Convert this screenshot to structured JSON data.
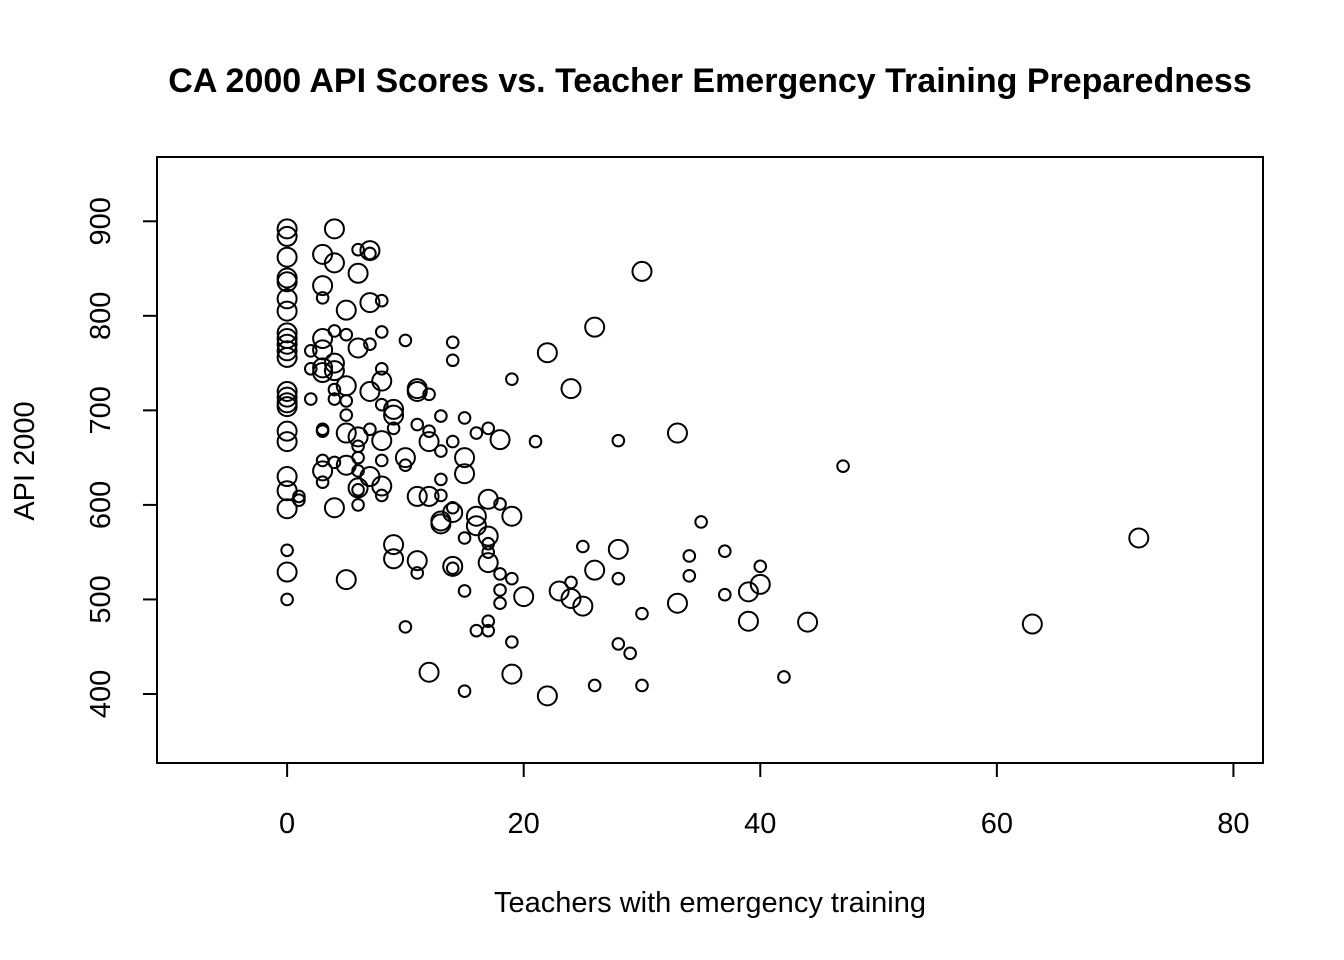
{
  "chart_data": {
    "type": "scatter",
    "title": "CA 2000 API Scores vs. Teacher Emergency Training Preparedness",
    "xlabel": "Teachers with emergency training",
    "ylabel": "API 2000",
    "xlim": [
      -11,
      82.5
    ],
    "ylim": [
      327,
      968
    ],
    "x_ticks": [
      0,
      20,
      40,
      60,
      80
    ],
    "y_ticks": [
      400,
      500,
      600,
      700,
      800,
      900
    ],
    "grid": false,
    "legend": "none",
    "marker": "open circle, size varies",
    "points": [
      {
        "x": 0,
        "y": 892,
        "s": 1.5
      },
      {
        "x": 0,
        "y": 884,
        "s": 1.5
      },
      {
        "x": 0,
        "y": 862,
        "s": 1.5
      },
      {
        "x": 0,
        "y": 840,
        "s": 1.5
      },
      {
        "x": 0,
        "y": 836,
        "s": 1.5
      },
      {
        "x": 0,
        "y": 818,
        "s": 1.5
      },
      {
        "x": 0,
        "y": 805,
        "s": 1.5
      },
      {
        "x": 0,
        "y": 782,
        "s": 1.5
      },
      {
        "x": 0,
        "y": 776,
        "s": 1.5
      },
      {
        "x": 0,
        "y": 770,
        "s": 1.5
      },
      {
        "x": 0,
        "y": 763,
        "s": 1.5
      },
      {
        "x": 0,
        "y": 756,
        "s": 1.5
      },
      {
        "x": 0,
        "y": 720,
        "s": 1.5
      },
      {
        "x": 0,
        "y": 714,
        "s": 1.5
      },
      {
        "x": 0,
        "y": 708,
        "s": 1.5
      },
      {
        "x": 0,
        "y": 704,
        "s": 1.5
      },
      {
        "x": 0,
        "y": 678,
        "s": 1.5
      },
      {
        "x": 0,
        "y": 667,
        "s": 1.5
      },
      {
        "x": 0,
        "y": 630,
        "s": 1.5
      },
      {
        "x": 0,
        "y": 615,
        "s": 1.5
      },
      {
        "x": 0,
        "y": 596,
        "s": 1.5
      },
      {
        "x": 0,
        "y": 552,
        "s": 1.0
      },
      {
        "x": 0,
        "y": 529,
        "s": 1.5
      },
      {
        "x": 0,
        "y": 500,
        "s": 1.0
      },
      {
        "x": 1,
        "y": 609,
        "s": 1.0
      },
      {
        "x": 1,
        "y": 605,
        "s": 1.0
      },
      {
        "x": 2,
        "y": 763,
        "s": 1.0
      },
      {
        "x": 2,
        "y": 744,
        "s": 1.0
      },
      {
        "x": 2,
        "y": 712,
        "s": 1.0
      },
      {
        "x": 3,
        "y": 865,
        "s": 1.5
      },
      {
        "x": 3,
        "y": 832,
        "s": 1.5
      },
      {
        "x": 3,
        "y": 819,
        "s": 1.0
      },
      {
        "x": 3,
        "y": 776,
        "s": 1.5
      },
      {
        "x": 3,
        "y": 764,
        "s": 1.5
      },
      {
        "x": 3,
        "y": 745,
        "s": 1.5
      },
      {
        "x": 3,
        "y": 740,
        "s": 1.5
      },
      {
        "x": 3,
        "y": 680,
        "s": 1.0
      },
      {
        "x": 3,
        "y": 678,
        "s": 1.0
      },
      {
        "x": 3,
        "y": 647,
        "s": 1.0
      },
      {
        "x": 3,
        "y": 636,
        "s": 1.5
      },
      {
        "x": 3,
        "y": 624,
        "s": 1.0
      },
      {
        "x": 4,
        "y": 892,
        "s": 1.5
      },
      {
        "x": 4,
        "y": 856,
        "s": 1.5
      },
      {
        "x": 4,
        "y": 784,
        "s": 1.0
      },
      {
        "x": 4,
        "y": 750,
        "s": 1.5
      },
      {
        "x": 4,
        "y": 742,
        "s": 1.5
      },
      {
        "x": 4,
        "y": 722,
        "s": 1.0
      },
      {
        "x": 4,
        "y": 712,
        "s": 1.0
      },
      {
        "x": 4,
        "y": 645,
        "s": 1.0
      },
      {
        "x": 4,
        "y": 597,
        "s": 1.5
      },
      {
        "x": 5,
        "y": 806,
        "s": 1.5
      },
      {
        "x": 5,
        "y": 780,
        "s": 1.0
      },
      {
        "x": 5,
        "y": 726,
        "s": 1.5
      },
      {
        "x": 5,
        "y": 710,
        "s": 1.0
      },
      {
        "x": 5,
        "y": 695,
        "s": 1.0
      },
      {
        "x": 5,
        "y": 676,
        "s": 1.5
      },
      {
        "x": 5,
        "y": 642,
        "s": 1.5
      },
      {
        "x": 5,
        "y": 521,
        "s": 1.5
      },
      {
        "x": 6,
        "y": 870,
        "s": 1.0
      },
      {
        "x": 6,
        "y": 845,
        "s": 1.5
      },
      {
        "x": 6,
        "y": 766,
        "s": 1.5
      },
      {
        "x": 6,
        "y": 672,
        "s": 1.5
      },
      {
        "x": 6,
        "y": 662,
        "s": 1.0
      },
      {
        "x": 6,
        "y": 650,
        "s": 1.0
      },
      {
        "x": 6,
        "y": 636,
        "s": 1.0
      },
      {
        "x": 6,
        "y": 618,
        "s": 1.5
      },
      {
        "x": 6,
        "y": 616,
        "s": 1.0
      },
      {
        "x": 6,
        "y": 600,
        "s": 1.0
      },
      {
        "x": 7,
        "y": 869,
        "s": 1.5
      },
      {
        "x": 7,
        "y": 866,
        "s": 1.0
      },
      {
        "x": 7,
        "y": 814,
        "s": 1.5
      },
      {
        "x": 7,
        "y": 770,
        "s": 1.0
      },
      {
        "x": 7,
        "y": 720,
        "s": 1.5
      },
      {
        "x": 7,
        "y": 680,
        "s": 1.0
      },
      {
        "x": 7,
        "y": 630,
        "s": 1.5
      },
      {
        "x": 8,
        "y": 816,
        "s": 1.0
      },
      {
        "x": 8,
        "y": 783,
        "s": 1.0
      },
      {
        "x": 8,
        "y": 744,
        "s": 1.0
      },
      {
        "x": 8,
        "y": 731,
        "s": 1.5
      },
      {
        "x": 8,
        "y": 706,
        "s": 1.0
      },
      {
        "x": 8,
        "y": 668,
        "s": 1.5
      },
      {
        "x": 8,
        "y": 647,
        "s": 1.0
      },
      {
        "x": 8,
        "y": 620,
        "s": 1.5
      },
      {
        "x": 8,
        "y": 610,
        "s": 1.0
      },
      {
        "x": 9,
        "y": 701,
        "s": 1.5
      },
      {
        "x": 9,
        "y": 695,
        "s": 1.5
      },
      {
        "x": 9,
        "y": 681,
        "s": 1.0
      },
      {
        "x": 9,
        "y": 558,
        "s": 1.5
      },
      {
        "x": 9,
        "y": 543,
        "s": 1.5
      },
      {
        "x": 10,
        "y": 774,
        "s": 1.0
      },
      {
        "x": 10,
        "y": 650,
        "s": 1.5
      },
      {
        "x": 10,
        "y": 642,
        "s": 1.0
      },
      {
        "x": 10,
        "y": 471,
        "s": 1.0
      },
      {
        "x": 11,
        "y": 723,
        "s": 1.5
      },
      {
        "x": 11,
        "y": 720,
        "s": 1.5
      },
      {
        "x": 11,
        "y": 685,
        "s": 1.0
      },
      {
        "x": 11,
        "y": 609,
        "s": 1.5
      },
      {
        "x": 11,
        "y": 541,
        "s": 1.5
      },
      {
        "x": 11,
        "y": 528,
        "s": 1.0
      },
      {
        "x": 12,
        "y": 717,
        "s": 1.0
      },
      {
        "x": 12,
        "y": 678,
        "s": 1.0
      },
      {
        "x": 12,
        "y": 667,
        "s": 1.5
      },
      {
        "x": 12,
        "y": 609,
        "s": 1.5
      },
      {
        "x": 12,
        "y": 423,
        "s": 1.5
      },
      {
        "x": 13,
        "y": 694,
        "s": 1.0
      },
      {
        "x": 13,
        "y": 657,
        "s": 1.0
      },
      {
        "x": 13,
        "y": 627,
        "s": 1.0
      },
      {
        "x": 13,
        "y": 610,
        "s": 1.0
      },
      {
        "x": 13,
        "y": 583,
        "s": 1.5
      },
      {
        "x": 13,
        "y": 580,
        "s": 1.5
      },
      {
        "x": 14,
        "y": 772,
        "s": 1.0
      },
      {
        "x": 14,
        "y": 753,
        "s": 1.0
      },
      {
        "x": 14,
        "y": 667,
        "s": 1.0
      },
      {
        "x": 14,
        "y": 597,
        "s": 1.0
      },
      {
        "x": 14,
        "y": 592,
        "s": 1.5
      },
      {
        "x": 14,
        "y": 535,
        "s": 1.5
      },
      {
        "x": 14,
        "y": 533,
        "s": 1.0
      },
      {
        "x": 15,
        "y": 692,
        "s": 1.0
      },
      {
        "x": 15,
        "y": 650,
        "s": 1.5
      },
      {
        "x": 15,
        "y": 633,
        "s": 1.5
      },
      {
        "x": 15,
        "y": 565,
        "s": 1.0
      },
      {
        "x": 15,
        "y": 509,
        "s": 1.0
      },
      {
        "x": 15,
        "y": 403,
        "s": 1.0
      },
      {
        "x": 16,
        "y": 676,
        "s": 1.0
      },
      {
        "x": 16,
        "y": 588,
        "s": 1.5
      },
      {
        "x": 16,
        "y": 578,
        "s": 1.5
      },
      {
        "x": 16,
        "y": 467,
        "s": 1.0
      },
      {
        "x": 17,
        "y": 681,
        "s": 1.0
      },
      {
        "x": 17,
        "y": 606,
        "s": 1.5
      },
      {
        "x": 17,
        "y": 567,
        "s": 1.5
      },
      {
        "x": 17,
        "y": 559,
        "s": 1.0
      },
      {
        "x": 17,
        "y": 550,
        "s": 1.0
      },
      {
        "x": 17,
        "y": 539,
        "s": 1.5
      },
      {
        "x": 17,
        "y": 477,
        "s": 1.0
      },
      {
        "x": 17,
        "y": 467,
        "s": 1.0
      },
      {
        "x": 18,
        "y": 669,
        "s": 1.5
      },
      {
        "x": 18,
        "y": 601,
        "s": 1.0
      },
      {
        "x": 18,
        "y": 527,
        "s": 1.0
      },
      {
        "x": 18,
        "y": 510,
        "s": 1.0
      },
      {
        "x": 18,
        "y": 496,
        "s": 1.0
      },
      {
        "x": 19,
        "y": 733,
        "s": 1.0
      },
      {
        "x": 19,
        "y": 588,
        "s": 1.5
      },
      {
        "x": 19,
        "y": 522,
        "s": 1.0
      },
      {
        "x": 19,
        "y": 455,
        "s": 1.0
      },
      {
        "x": 19,
        "y": 421,
        "s": 1.5
      },
      {
        "x": 20,
        "y": 503,
        "s": 1.5
      },
      {
        "x": 21,
        "y": 667,
        "s": 1.0
      },
      {
        "x": 22,
        "y": 761,
        "s": 1.5
      },
      {
        "x": 22,
        "y": 398,
        "s": 1.5
      },
      {
        "x": 23,
        "y": 509,
        "s": 1.5
      },
      {
        "x": 24,
        "y": 723,
        "s": 1.5
      },
      {
        "x": 24,
        "y": 518,
        "s": 1.0
      },
      {
        "x": 24,
        "y": 501,
        "s": 1.5
      },
      {
        "x": 25,
        "y": 556,
        "s": 1.0
      },
      {
        "x": 25,
        "y": 493,
        "s": 1.5
      },
      {
        "x": 26,
        "y": 788,
        "s": 1.5
      },
      {
        "x": 26,
        "y": 531,
        "s": 1.5
      },
      {
        "x": 26,
        "y": 409,
        "s": 1.0
      },
      {
        "x": 28,
        "y": 668,
        "s": 1.0
      },
      {
        "x": 28,
        "y": 553,
        "s": 1.5
      },
      {
        "x": 28,
        "y": 522,
        "s": 1.0
      },
      {
        "x": 28,
        "y": 453,
        "s": 1.0
      },
      {
        "x": 29,
        "y": 443,
        "s": 1.0
      },
      {
        "x": 30,
        "y": 847,
        "s": 1.5
      },
      {
        "x": 30,
        "y": 485,
        "s": 1.0
      },
      {
        "x": 30,
        "y": 409,
        "s": 1.0
      },
      {
        "x": 33,
        "y": 676,
        "s": 1.5
      },
      {
        "x": 33,
        "y": 496,
        "s": 1.5
      },
      {
        "x": 34,
        "y": 546,
        "s": 1.0
      },
      {
        "x": 34,
        "y": 525,
        "s": 1.0
      },
      {
        "x": 35,
        "y": 582,
        "s": 1.0
      },
      {
        "x": 37,
        "y": 551,
        "s": 1.0
      },
      {
        "x": 37,
        "y": 505,
        "s": 1.0
      },
      {
        "x": 39,
        "y": 508,
        "s": 1.5
      },
      {
        "x": 39,
        "y": 477,
        "s": 1.5
      },
      {
        "x": 40,
        "y": 535,
        "s": 1.0
      },
      {
        "x": 40,
        "y": 516,
        "s": 1.5
      },
      {
        "x": 42,
        "y": 418,
        "s": 1.0
      },
      {
        "x": 44,
        "y": 476,
        "s": 1.5
      },
      {
        "x": 47,
        "y": 641,
        "s": 1.0
      },
      {
        "x": 63,
        "y": 474,
        "s": 1.5
      },
      {
        "x": 72,
        "y": 565,
        "s": 1.5
      }
    ]
  }
}
